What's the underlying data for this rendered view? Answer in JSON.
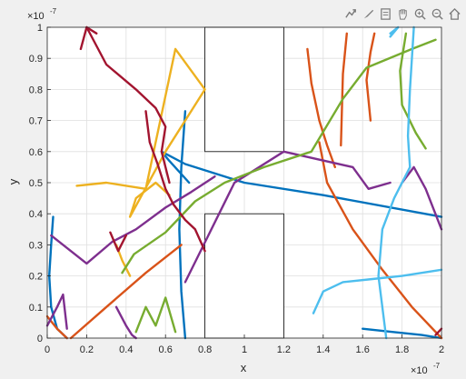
{
  "toolbar": {
    "icons": [
      "export-icon",
      "brush-icon",
      "datatip-icon",
      "pan-icon",
      "zoom-in-icon",
      "zoom-out-icon",
      "home-icon"
    ]
  },
  "chart_data": {
    "type": "line",
    "xlabel": "x",
    "ylabel": "y",
    "xlim": [
      0,
      2e-07
    ],
    "ylim": [
      0,
      1e-07
    ],
    "x_exponent_label": "×10",
    "x_exponent_power": "-7",
    "y_exponent_label": "×10",
    "y_exponent_power": "-7",
    "x_ticks": [
      0,
      2e-08,
      4e-08,
      6e-08,
      8e-08,
      1e-07,
      1.2e-07,
      1.4e-07,
      1.6e-07,
      1.8e-07,
      2e-07
    ],
    "x_tick_labels": [
      "0",
      "0.2",
      "0.4",
      "0.6",
      "0.8",
      "1",
      "1.2",
      "1.4",
      "1.6",
      "1.8",
      "2"
    ],
    "y_ticks": [
      0,
      1e-08,
      2e-08,
      3e-08,
      4e-08,
      5e-08,
      6e-08,
      7e-08,
      8e-08,
      9e-08,
      1e-07
    ],
    "y_tick_labels": [
      "0",
      "0.1",
      "0.2",
      "0.3",
      "0.4",
      "0.5",
      "0.6",
      "0.7",
      "0.8",
      "0.9",
      "1"
    ],
    "grid": true,
    "obstacles": [
      {
        "x": [
          8e-08,
          1.2e-07
        ],
        "y": [
          6e-08,
          1e-07
        ]
      },
      {
        "x": [
          8e-08,
          1.2e-07
        ],
        "y": [
          0,
          4e-08
        ]
      }
    ],
    "colors": {
      "blue": "#0072bd",
      "orange": "#d95319",
      "yellow": "#edb120",
      "purple": "#7e2f8e",
      "green": "#77ac30",
      "cyan": "#4dbeee",
      "red": "#a2142f"
    },
    "series": [
      {
        "color": "#0072bd",
        "x": [
          5.8e-08,
          7e-08,
          1e-07,
          1.4e-07,
          2e-07
        ],
        "y": [
          6e-08,
          5.6e-08,
          5e-08,
          4.6e-08,
          3.9e-08
        ]
      },
      {
        "color": "#0072bd",
        "x": [
          5.8e-08,
          6.2e-08,
          7.2e-08
        ],
        "y": [
          6e-08,
          5.7e-08,
          5e-08
        ]
      },
      {
        "color": "#0072bd",
        "x": [
          7e-08,
          6.8e-08,
          6.7e-08,
          6.8e-08,
          7e-08
        ],
        "y": [
          7.3e-08,
          5.5e-08,
          3.5e-08,
          1.5e-08,
          0
        ]
      },
      {
        "color": "#0072bd",
        "x": [
          3e-09,
          2e-09,
          1e-09,
          2e-09,
          5e-09,
          1e-08
        ],
        "y": [
          3.9e-08,
          3e-08,
          2e-08,
          1e-08,
          3e-09,
          0
        ]
      },
      {
        "color": "#0072bd",
        "x": [
          1.6e-07,
          1.75e-07,
          1.9e-07,
          2e-07
        ],
        "y": [
          3e-09,
          2e-09,
          1e-09,
          0
        ]
      },
      {
        "color": "#d95319",
        "x": [
          1.38e-07,
          1.42e-07,
          1.55e-07,
          1.7e-07,
          1.85e-07,
          2e-07
        ],
        "y": [
          6.3e-08,
          5e-08,
          3.5e-08,
          2.2e-08,
          1e-08,
          0
        ]
      },
      {
        "color": "#d95319",
        "x": [
          1.32e-07,
          1.34e-07,
          1.38e-07,
          1.42e-07,
          1.46e-07
        ],
        "y": [
          9.3e-08,
          8.2e-08,
          7e-08,
          6.2e-08,
          5.5e-08
        ]
      },
      {
        "color": "#d95319",
        "x": [
          1.52e-07,
          1.5e-07,
          1.49e-07
        ],
        "y": [
          9.8e-08,
          8.5e-08,
          6.2e-08
        ]
      },
      {
        "color": "#d95319",
        "x": [
          1.66e-07,
          1.64e-07,
          1.62e-07,
          1.64e-07
        ],
        "y": [
          9.8e-08,
          9.2e-08,
          8.3e-08,
          7e-08
        ]
      },
      {
        "color": "#d95319",
        "x": [
          0,
          5e-09,
          1e-08
        ],
        "y": [
          7e-09,
          3e-09,
          0
        ]
      },
      {
        "color": "#d95319",
        "x": [
          1.2e-08,
          3e-08,
          5e-08,
          6.8e-08
        ],
        "y": [
          0,
          1e-08,
          2.1e-08,
          3e-08
        ]
      },
      {
        "color": "#edb120",
        "x": [
          1.5e-08,
          3e-08,
          5e-08,
          6.5e-08,
          8e-08,
          6e-08,
          4.2e-08,
          4.5e-08,
          5.5e-08,
          6.2e-08
        ],
        "y": [
          4.9e-08,
          5e-08,
          4.8e-08,
          9.3e-08,
          8e-08,
          6e-08,
          3.9e-08,
          4.5e-08,
          5e-08,
          4.6e-08
        ]
      },
      {
        "color": "#edb120",
        "x": [
          3.5e-08,
          3.8e-08,
          4.2e-08
        ],
        "y": [
          3e-08,
          2.5e-08,
          2e-08
        ]
      },
      {
        "color": "#7e2f8e",
        "x": [
          7e-08,
          9.5e-08,
          1.2e-07,
          1.55e-07,
          1.63e-07,
          1.74e-07
        ],
        "y": [
          1.8e-08,
          5e-08,
          6e-08,
          5.5e-08,
          4.8e-08,
          5e-08
        ]
      },
      {
        "color": "#7e2f8e",
        "x": [
          2e-09,
          2e-08,
          3.3e-08,
          4.5e-08,
          6e-08,
          7.3e-08,
          8.5e-08
        ],
        "y": [
          3.3e-08,
          2.4e-08,
          3.1e-08,
          3.5e-08,
          4.2e-08,
          4.7e-08,
          5.2e-08
        ]
      },
      {
        "color": "#7e2f8e",
        "x": [
          3.5e-08,
          4e-08,
          4.3e-08,
          4.5e-08
        ],
        "y": [
          1e-08,
          4e-09,
          1e-09,
          0
        ]
      },
      {
        "color": "#7e2f8e",
        "x": [
          1.8e-07,
          1.86e-07,
          1.92e-07,
          2e-07
        ],
        "y": [
          5e-08,
          5.5e-08,
          4.8e-08,
          3.5e-08
        ]
      },
      {
        "color": "#7e2f8e",
        "x": [
          0,
          5e-09,
          8e-09,
          1e-08
        ],
        "y": [
          4e-09,
          1e-08,
          1.4e-08,
          3e-09
        ]
      },
      {
        "color": "#77ac30",
        "x": [
          3.8e-08,
          4.4e-08,
          6e-08,
          7.5e-08,
          9e-08,
          1.1e-07,
          1.34e-07,
          1.5e-07,
          1.62e-07,
          1.85e-07,
          1.97e-07
        ],
        "y": [
          2.1e-08,
          2.7e-08,
          3.4e-08,
          4.4e-08,
          5e-08,
          5.5e-08,
          6e-08,
          7.7e-08,
          8.7e-08,
          9.3e-08,
          9.6e-08
        ]
      },
      {
        "color": "#77ac30",
        "x": [
          4.5e-08,
          5e-08,
          5.5e-08,
          6e-08,
          6.5e-08
        ],
        "y": [
          2e-09,
          1e-08,
          4e-09,
          1.3e-08,
          2e-09
        ]
      },
      {
        "color": "#77ac30",
        "x": [
          1.82e-07,
          1.79e-07,
          1.8e-07,
          1.87e-07,
          1.92e-07
        ],
        "y": [
          9.8e-08,
          8.6e-08,
          7.5e-08,
          6.6e-08,
          6.1e-08
        ]
      },
      {
        "color": "#4dbeee",
        "x": [
          1.35e-07,
          1.4e-07,
          1.5e-07,
          1.65e-07,
          1.8e-07,
          2e-07
        ],
        "y": [
          8e-09,
          1.5e-08,
          1.8e-08,
          1.9e-08,
          2e-08,
          2.2e-08
        ]
      },
      {
        "color": "#4dbeee",
        "x": [
          1.84e-07,
          1.76e-07,
          1.7e-07,
          1.68e-07,
          1.72e-07
        ],
        "y": [
          5.5e-08,
          4.5e-08,
          3.5e-08,
          2e-08,
          0
        ]
      },
      {
        "color": "#4dbeee",
        "x": [
          1.86e-07,
          1.84e-07,
          1.83e-07,
          1.84e-07
        ],
        "y": [
          1e-07,
          8e-08,
          6.5e-08,
          5.5e-08
        ]
      },
      {
        "color": "#4dbeee",
        "x": [
          1.74e-07,
          1.78e-07,
          1.74e-07
        ],
        "y": [
          9.7e-08,
          1e-07,
          9.8e-08
        ]
      },
      {
        "color": "#a2142f",
        "x": [
          2e-08,
          3e-08,
          4.5e-08,
          5.5e-08,
          6e-08,
          5.8e-08,
          6.2e-08
        ],
        "y": [
          1e-07,
          8.8e-08,
          8e-08,
          7.4e-08,
          6.8e-08,
          6e-08,
          5e-08
        ]
      },
      {
        "color": "#a2142f",
        "x": [
          1.7e-08,
          2e-08,
          2.5e-08
        ],
        "y": [
          9.3e-08,
          1e-07,
          9.8e-08
        ]
      },
      {
        "color": "#a2142f",
        "x": [
          5e-08,
          5.2e-08,
          5.6e-08,
          6e-08,
          6.4e-08,
          7e-08,
          7.5e-08,
          8e-08
        ],
        "y": [
          7.3e-08,
          6.3e-08,
          5.6e-08,
          4.8e-08,
          4.3e-08,
          3.8e-08,
          3.5e-08,
          2.8e-08
        ]
      },
      {
        "color": "#a2142f",
        "x": [
          3.2e-08,
          3.6e-08,
          4e-08
        ],
        "y": [
          3.4e-08,
          2.8e-08,
          3.3e-08
        ]
      },
      {
        "color": "#a2142f",
        "x": [
          1.97e-07,
          2e-07
        ],
        "y": [
          1e-09,
          3e-09
        ]
      }
    ]
  }
}
